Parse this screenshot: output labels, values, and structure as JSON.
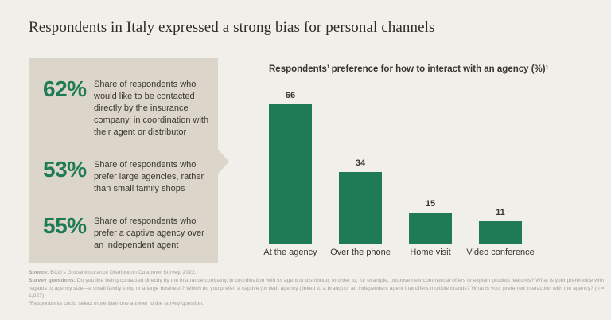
{
  "title": "Respondents in Italy expressed a strong bias for personal channels",
  "stats": [
    {
      "value": "62%",
      "description": "Share of respondents who would like to be contacted directly by the insurance company, in coordination with their agent or distributor"
    },
    {
      "value": "53%",
      "description": "Share of respondents who prefer large agencies, rather than small family shops"
    },
    {
      "value": "55%",
      "description": "Share of respondents who prefer a captive agency over an independent agent"
    }
  ],
  "chart_data": {
    "type": "bar",
    "title": "Respondents’ preference for how to interact with an agency (%)¹",
    "categories": [
      "At the agency",
      "Over the phone",
      "Home visit",
      "Video conference"
    ],
    "values": [
      66,
      34,
      15,
      11
    ],
    "xlabel": "",
    "ylabel": "",
    "ylim": [
      0,
      73
    ],
    "grid": false,
    "legend": false,
    "value_labels": true,
    "bar_color": "#1f7b55"
  },
  "footer": {
    "source_label": "Source:",
    "source_text": " BCG’s Global Insurance Distribution Customer Survey, 2022.",
    "questions_label": "Survey questions:",
    "questions_text": " Do you like being contacted directly by the insurance company, in coordination with its agent or distributor, in order to, for example, propose new commercial offers or explain product features? What is your preference with regards to agency size—a small family shop or a large business? Which do you prefer, a captive (or tied) agency (linked to a brand) or an independent agent that offers multiple brands? What is your preferred interaction with the agency? (n = 1,027)",
    "footnote": "¹Respondents could select more than one answer to the survey question."
  },
  "colors": {
    "background": "#f1efe9",
    "panel": "#dcd6ca",
    "accent_green": "#1f7b55",
    "text_dark": "#38342f",
    "footer_text": "#a49d94"
  }
}
